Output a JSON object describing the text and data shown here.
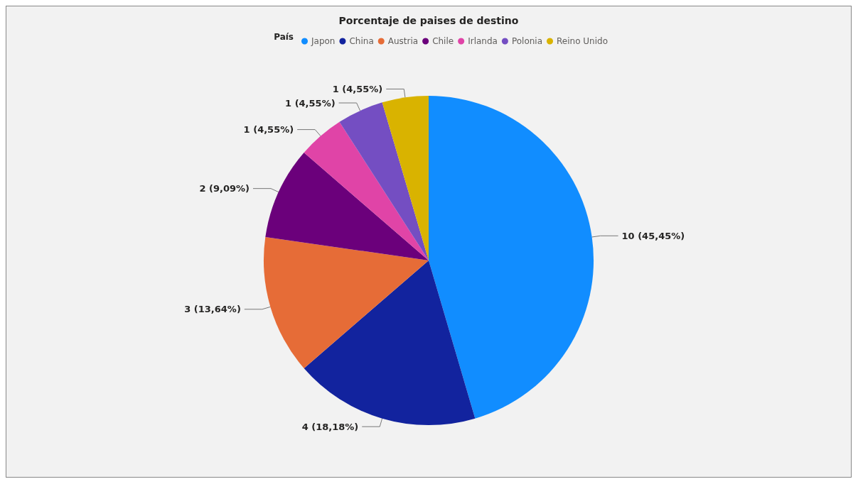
{
  "chart_data": {
    "type": "pie",
    "title": "Porcentaje de paises de destino",
    "legend_title": "País",
    "legend": "top",
    "categories": [
      "Japon",
      "China",
      "Austria",
      "Chile",
      "Irlanda",
      "Polonia",
      "Reino Unido"
    ],
    "values": [
      10,
      4,
      3,
      2,
      1,
      1,
      1
    ],
    "value_labels": [
      "10 (45,45%)",
      "4 (18,18%)",
      "3 (13,64%)",
      "2 (9,09%)",
      "1 (4,55%)",
      "1 (4,55%)",
      "1 (4,55%)"
    ],
    "colors": [
      "#118dff",
      "#12239e",
      "#e66c37",
      "#6b007b",
      "#e044a7",
      "#744ec2",
      "#d9b300"
    ]
  }
}
